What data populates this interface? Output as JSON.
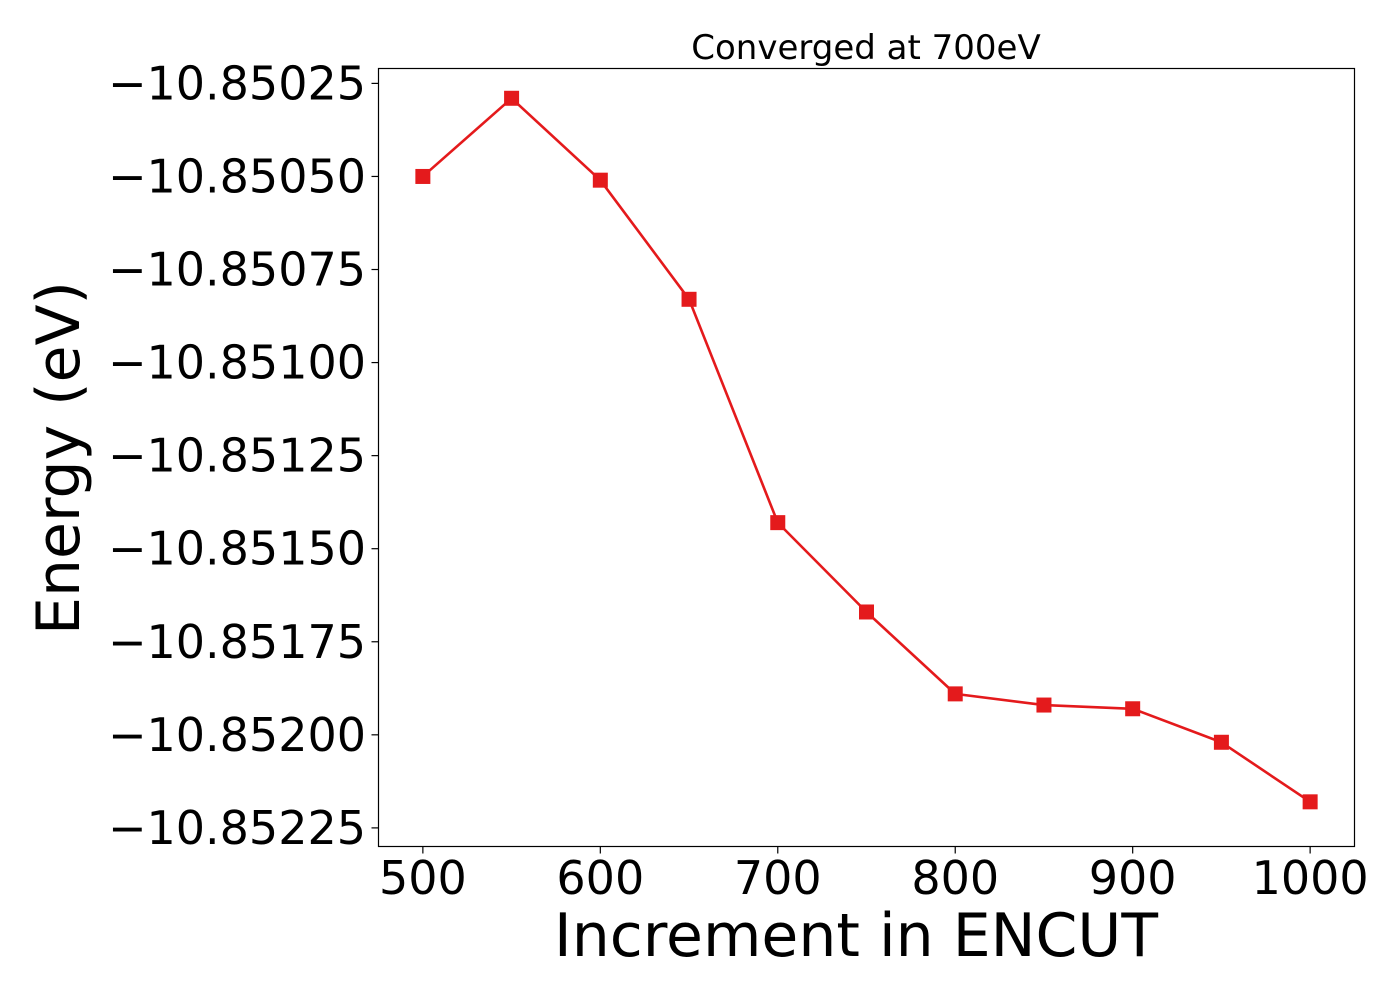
{
  "chart_data": {
    "type": "line",
    "title": "Converged at 700eV",
    "xlabel": "Increment in ENCUT",
    "ylabel": "Energy (eV)",
    "x": [
      500,
      550,
      600,
      650,
      700,
      750,
      800,
      850,
      900,
      950,
      1000
    ],
    "series": [
      {
        "values": [
          -10.8505,
          -10.85029,
          -10.85051,
          -10.85083,
          -10.85143,
          -10.85167,
          -10.85189,
          -10.85192,
          -10.85193,
          -10.85202,
          -10.85218
        ],
        "color": "#e41a1c",
        "marker": "square"
      }
    ],
    "xticks": [
      500,
      600,
      700,
      800,
      900,
      1000
    ],
    "xtick_labels": [
      "500",
      "600",
      "700",
      "800",
      "900",
      "1000"
    ],
    "yticks": [
      -10.85025,
      -10.8505,
      -10.85075,
      -10.851,
      -10.85125,
      -10.8515,
      -10.85175,
      -10.852,
      -10.85225
    ],
    "ytick_labels": [
      "−10.85025",
      "−10.85050",
      "−10.85075",
      "−10.85100",
      "−10.85125",
      "−10.85150",
      "−10.85175",
      "−10.85200",
      "−10.85225"
    ],
    "xlim": [
      475,
      1025
    ],
    "ylim": [
      -10.8523,
      -10.85021
    ],
    "grid": false,
    "legend": "none"
  }
}
